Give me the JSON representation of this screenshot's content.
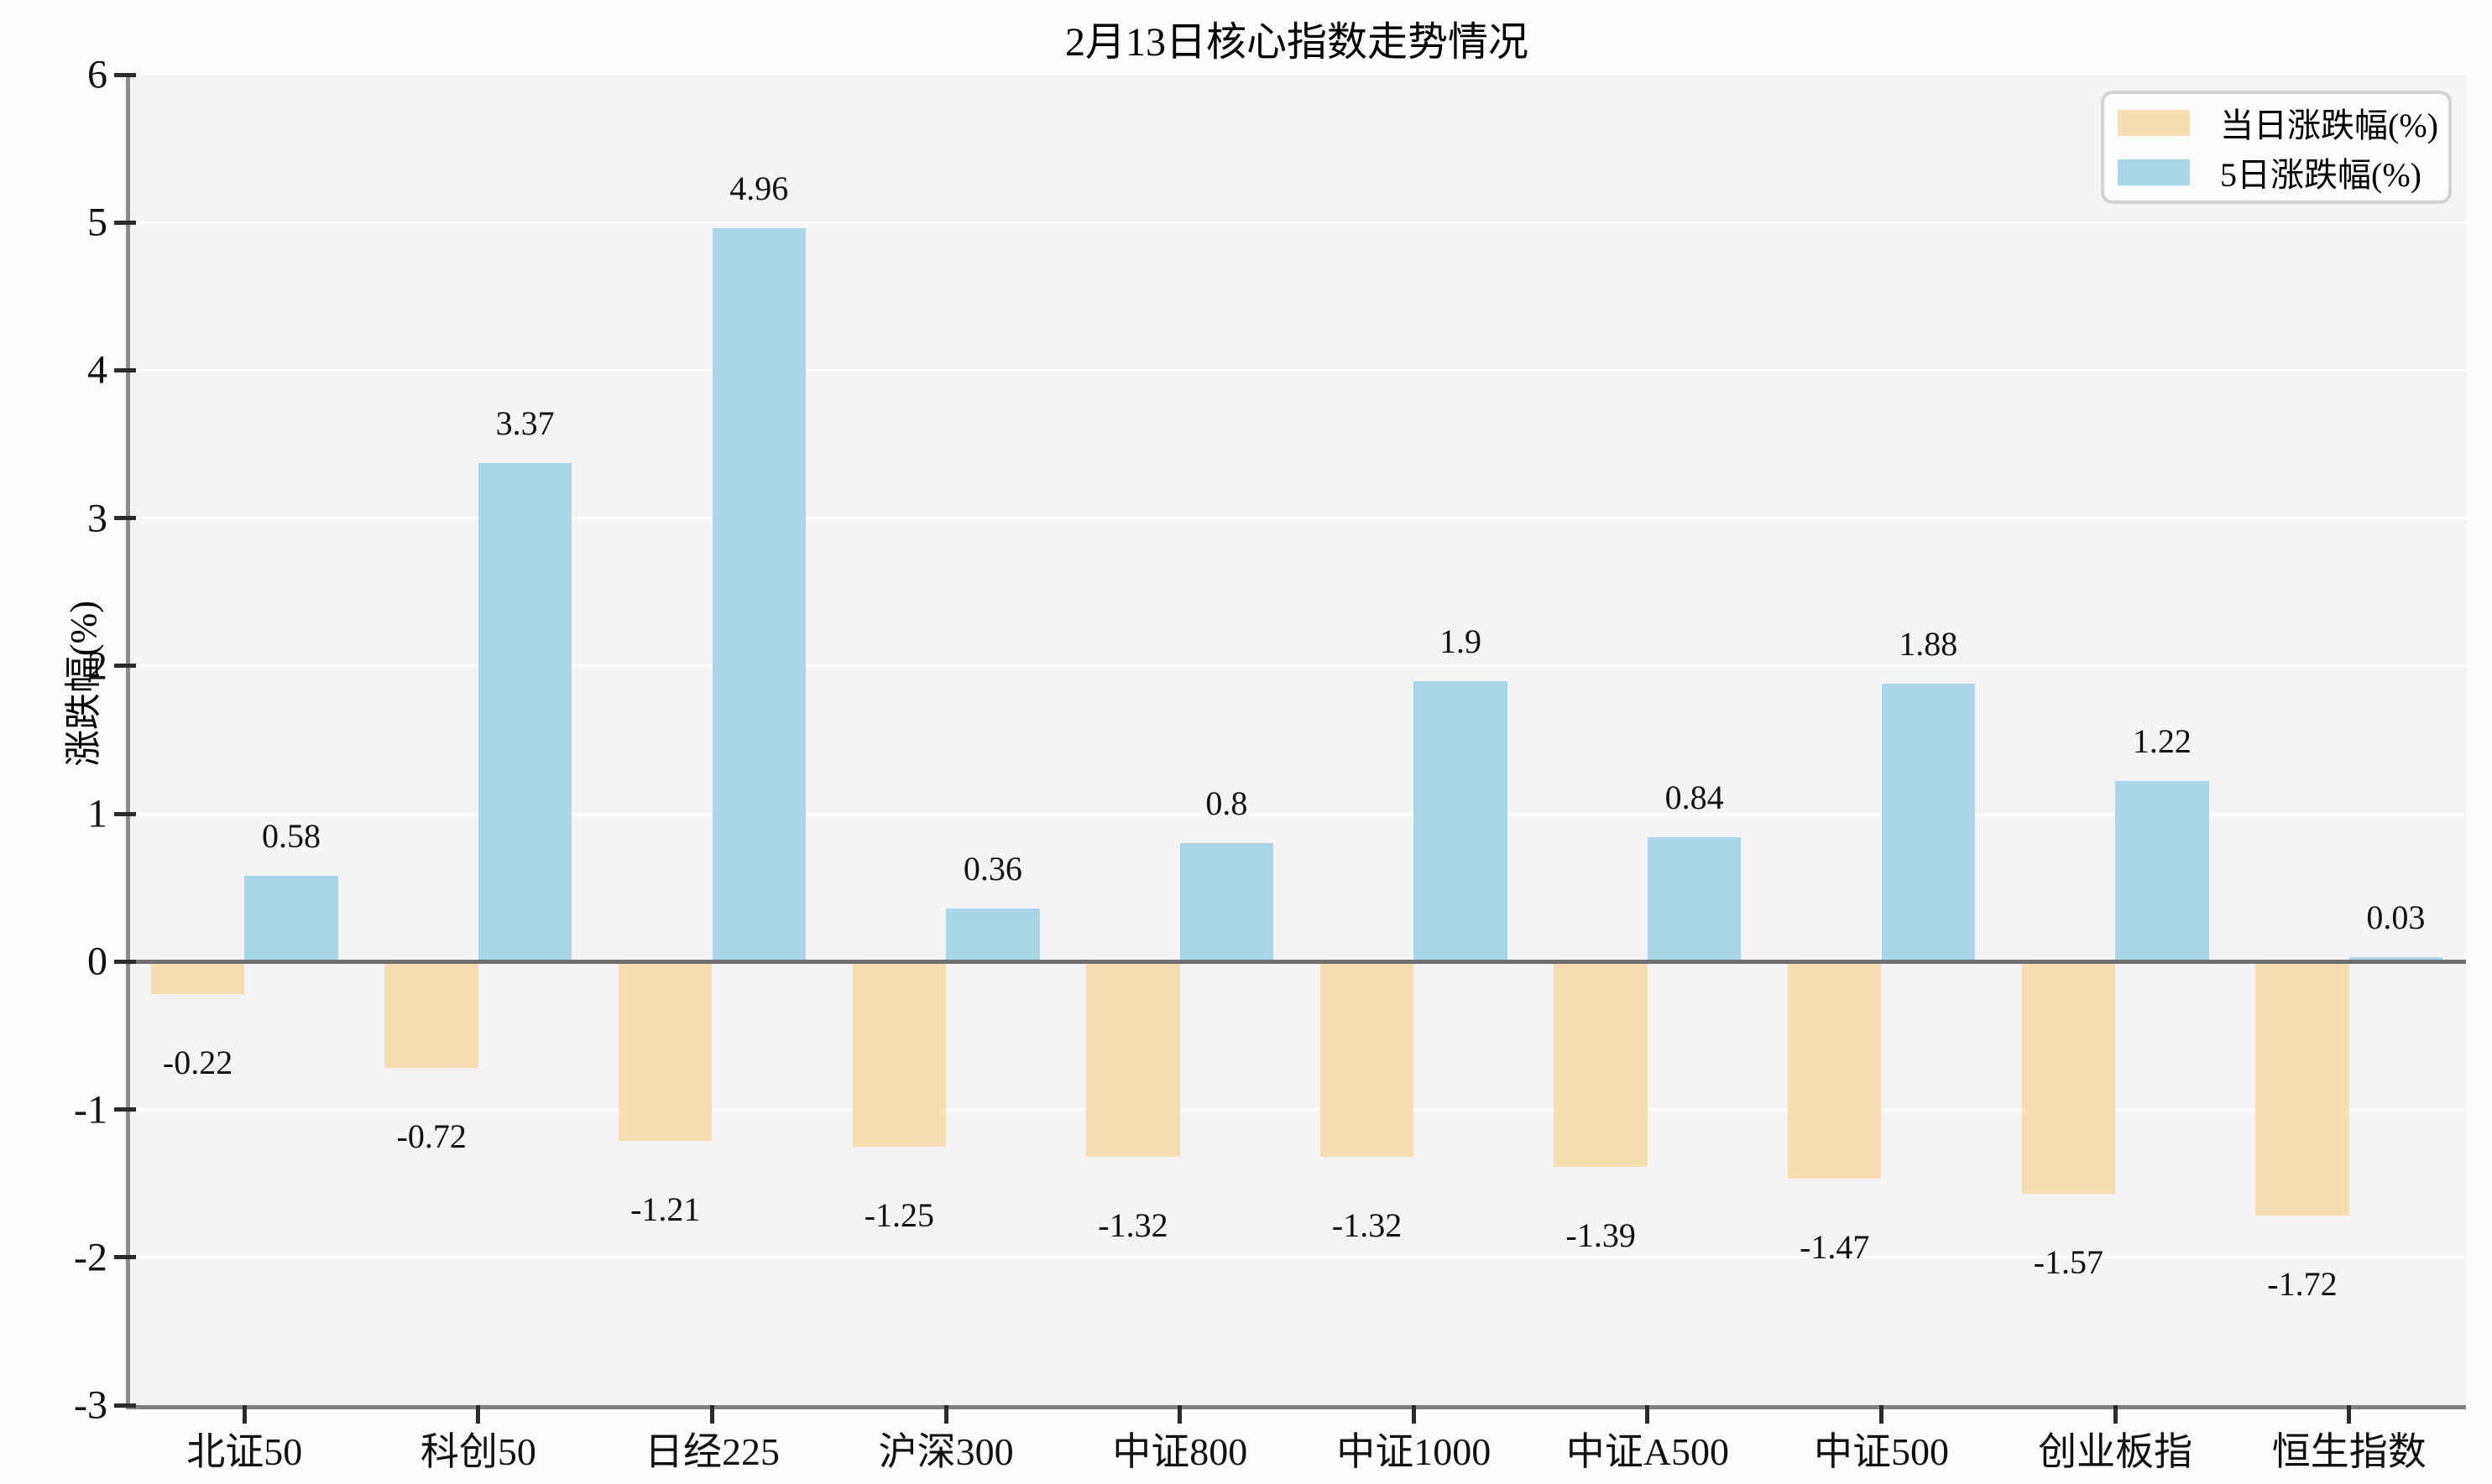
{
  "figure": {
    "title": "2月13日核心指数走势情况",
    "ylabel": "涨跌幅(%)"
  },
  "legend": {
    "position": "upper-right",
    "items": [
      {
        "label": "当日涨跌幅(%)",
        "color": "#F5DFB2"
      },
      {
        "label": "5日涨跌幅(%)",
        "color": "#A9D6E6"
      }
    ]
  },
  "colors": {
    "daily_bar": "#F5DFB2",
    "five_day_bar": "#A9D6E6",
    "plot_background": "#F4F4F5",
    "figure_background": "#FCFCFC",
    "gridline": "#FDFDFE",
    "zero_line": "#6F6F6F",
    "spine": "#8A8A8A"
  },
  "chart_data": {
    "type": "bar",
    "title": "2月13日核心指数走势情况",
    "xlabel": "",
    "ylabel": "涨跌幅(%)",
    "ylim": [
      -3,
      6
    ],
    "ytick_values": [
      6,
      5,
      4,
      3,
      2,
      1,
      0,
      -1,
      -2,
      -3
    ],
    "ytick_labels": [
      "6",
      "5",
      "4",
      "3",
      "2",
      "1",
      "0",
      "-1",
      "-2",
      "-3"
    ],
    "grid": true,
    "legend_position": "upper right",
    "categories": [
      "北证50",
      "科创50",
      "日经225",
      "沪深300",
      "中证800",
      "中证1000",
      "中证A500",
      "中证500",
      "创业板指",
      "恒生指数"
    ],
    "series": [
      {
        "name": "当日涨跌幅(%)",
        "color": "#F5DFB2",
        "values": [
          -0.22,
          -0.72,
          -1.21,
          -1.25,
          -1.32,
          -1.32,
          -1.39,
          -1.47,
          -1.57,
          -1.72
        ],
        "labels": [
          "-0.22",
          "-0.72",
          "-1.21",
          "-1.25",
          "-1.32",
          "-1.32",
          "-1.39",
          "-1.47",
          "-1.57",
          "-1.72"
        ]
      },
      {
        "name": "5日涨跌幅(%)",
        "color": "#A9D6E6",
        "values": [
          0.58,
          3.37,
          4.96,
          0.36,
          0.8,
          1.9,
          0.84,
          1.88,
          1.22,
          0.03
        ],
        "labels": [
          "0.58",
          "3.37",
          "4.96",
          "0.36",
          "0.8",
          "1.9",
          "0.84",
          "1.88",
          "1.22",
          "0.03"
        ]
      }
    ]
  }
}
